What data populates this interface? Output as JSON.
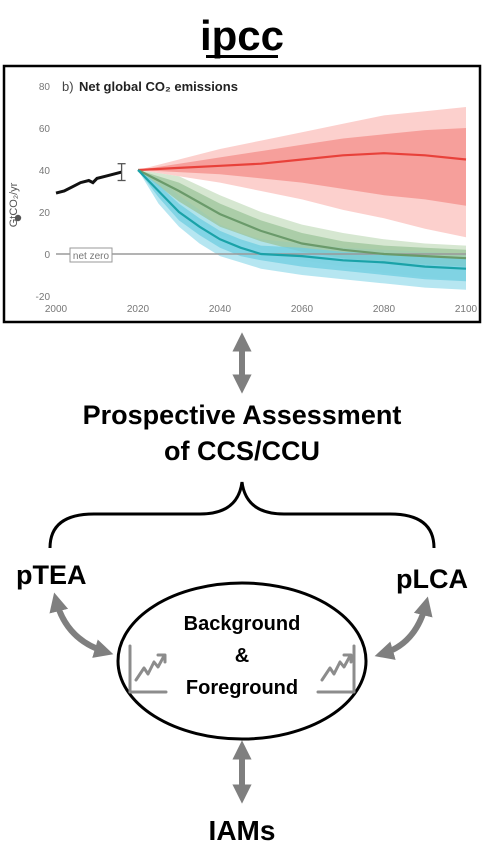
{
  "brand": {
    "logo_text": "ipcc"
  },
  "chart_data": {
    "type": "area",
    "panel_label": "b)",
    "title": "Net global CO₂ emissions",
    "ylabel": "GtCO₂/yr",
    "xlabel": "",
    "xlim": [
      2000,
      2100
    ],
    "ylim": [
      -20,
      80
    ],
    "x_ticks": [
      2000,
      2020,
      2040,
      2060,
      2080,
      2100
    ],
    "y_ticks": [
      80,
      60,
      40,
      20,
      0,
      -20
    ],
    "x_tick_labels": [
      "2000",
      "2020",
      "2040",
      "2060",
      "2080",
      "2100"
    ],
    "y_tick_labels": [
      "80",
      "60",
      "40",
      "20",
      "0",
      "-20"
    ],
    "annotation": "net zero",
    "grid": false,
    "historical": {
      "x": [
        2000,
        2002,
        2004,
        2006,
        2008,
        2009,
        2010,
        2012,
        2014,
        2016
      ],
      "y": [
        29,
        30,
        32,
        34,
        35,
        34,
        36,
        37,
        38,
        39
      ],
      "error_bar": {
        "x": 2016,
        "low": 35,
        "high": 43
      }
    },
    "series": [
      {
        "color": "#e8413a",
        "band_inner_color": "#f48f8a",
        "band_outer_color": "#fbc8c4",
        "x": [
          2020,
          2030,
          2040,
          2050,
          2060,
          2070,
          2080,
          2090,
          2100
        ],
        "median": [
          40,
          41,
          42,
          43,
          45,
          47,
          48,
          47,
          45
        ],
        "inner_low": [
          40,
          39,
          38,
          36,
          34,
          31,
          28,
          26,
          23
        ],
        "inner_high": [
          40,
          43,
          46,
          49,
          52,
          55,
          57,
          59,
          60
        ],
        "outer_low": [
          40,
          37,
          34,
          30,
          26,
          21,
          17,
          12,
          8
        ],
        "outer_high": [
          40,
          45,
          50,
          54,
          58,
          62,
          66,
          68,
          70
        ]
      },
      {
        "color": "#6a9a6a",
        "band_inner_color": "#9cc49a",
        "band_outer_color": "#cfe3c9",
        "x": [
          2020,
          2030,
          2040,
          2050,
          2060,
          2070,
          2080,
          2090,
          2100
        ],
        "median": [
          40,
          30,
          19,
          11,
          5,
          2,
          0,
          -1,
          -2
        ],
        "inner_low": [
          40,
          25,
          13,
          6,
          1,
          -2,
          -4,
          -5,
          -6
        ],
        "inner_high": [
          40,
          34,
          24,
          16,
          10,
          6,
          4,
          3,
          2
        ],
        "outer_low": [
          40,
          22,
          9,
          2,
          -3,
          -6,
          -9,
          -11,
          -13
        ],
        "outer_high": [
          40,
          37,
          28,
          20,
          14,
          10,
          7,
          5,
          4
        ]
      },
      {
        "color": "#1aa2a8",
        "band_inner_color": "#70cde0",
        "band_outer_color": "#a9e2ee",
        "x": [
          2020,
          2025,
          2030,
          2035,
          2040,
          2045,
          2050,
          2060,
          2070,
          2080,
          2090,
          2100
        ],
        "median": [
          40,
          30,
          20,
          13,
          7,
          3,
          0,
          -1,
          -3,
          -4,
          -6,
          -7
        ],
        "inner_low": [
          40,
          27,
          16,
          9,
          3,
          -1,
          -3,
          -6,
          -8,
          -10,
          -12,
          -13
        ],
        "inner_high": [
          40,
          33,
          24,
          17,
          11,
          7,
          4,
          3,
          1,
          0,
          -1,
          -2
        ],
        "outer_low": [
          40,
          24,
          13,
          5,
          -1,
          -4,
          -7,
          -10,
          -12,
          -14,
          -16,
          -17
        ],
        "outer_high": [
          40,
          36,
          28,
          21,
          14,
          10,
          7,
          5,
          3,
          2,
          1,
          0
        ]
      }
    ]
  },
  "diagram": {
    "heading_line1": "Prospective Assessment",
    "heading_line2": "of CCS/CCU",
    "left_label": "pTEA",
    "right_label": "pLCA",
    "center_line1": "Background",
    "center_line2": "&",
    "center_line3": "Foreground",
    "bottom_label": "IAMs",
    "arrow_color": "#7f7f7f",
    "trend_icon_color": "#8c8c8c"
  }
}
